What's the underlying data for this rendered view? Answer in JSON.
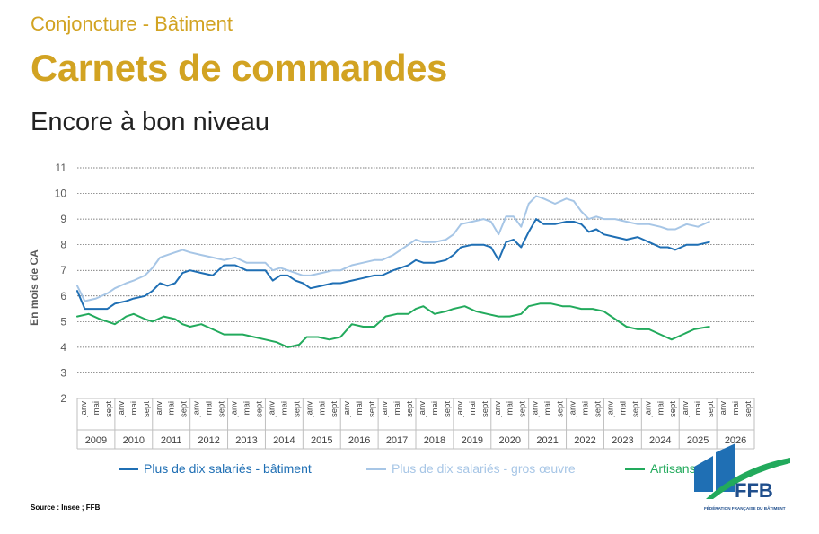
{
  "header": {
    "kicker": "Conjoncture - Bâtiment",
    "title": "Carnets de commandes",
    "subtitle": "Encore à bon niveau"
  },
  "source": "Source : Insee ; FFB",
  "logo": {
    "text": "FFB",
    "tagline": "FÉDÉRATION FRANÇAISE DU BÂTIMENT"
  },
  "chart_data": {
    "type": "line",
    "ylabel": "En mois de CA",
    "ylim": [
      2,
      11
    ],
    "yticks": [
      2,
      3,
      4,
      5,
      6,
      7,
      8,
      9,
      10,
      11
    ],
    "grid": "horizontal dotted",
    "legend_position": "bottom",
    "month_labels": [
      "janv",
      "mai",
      "sept"
    ],
    "years": [
      "2009",
      "2010",
      "2011",
      "2012",
      "2013",
      "2014",
      "2015",
      "2016",
      "2017",
      "2018",
      "2019",
      "2020",
      "2021",
      "2022",
      "2023",
      "2024",
      "2025",
      "2026"
    ],
    "series": [
      {
        "name": "Plus de dix salariés - bâtiment",
        "color": "#1f6fb4",
        "points": [
          [
            2009.0,
            6.2
          ],
          [
            2009.2,
            5.5
          ],
          [
            2009.5,
            5.5
          ],
          [
            2009.8,
            5.5
          ],
          [
            2010.0,
            5.7
          ],
          [
            2010.3,
            5.8
          ],
          [
            2010.5,
            5.9
          ],
          [
            2010.8,
            6.0
          ],
          [
            2011.0,
            6.2
          ],
          [
            2011.2,
            6.5
          ],
          [
            2011.4,
            6.4
          ],
          [
            2011.6,
            6.5
          ],
          [
            2011.8,
            6.9
          ],
          [
            2012.0,
            7.0
          ],
          [
            2012.3,
            6.9
          ],
          [
            2012.6,
            6.8
          ],
          [
            2012.9,
            7.2
          ],
          [
            2013.2,
            7.2
          ],
          [
            2013.5,
            7.0
          ],
          [
            2013.8,
            7.0
          ],
          [
            2014.0,
            7.0
          ],
          [
            2014.2,
            6.6
          ],
          [
            2014.4,
            6.8
          ],
          [
            2014.6,
            6.8
          ],
          [
            2014.8,
            6.6
          ],
          [
            2015.0,
            6.5
          ],
          [
            2015.2,
            6.3
          ],
          [
            2015.5,
            6.4
          ],
          [
            2015.8,
            6.5
          ],
          [
            2016.0,
            6.5
          ],
          [
            2016.3,
            6.6
          ],
          [
            2016.6,
            6.7
          ],
          [
            2016.9,
            6.8
          ],
          [
            2017.1,
            6.8
          ],
          [
            2017.4,
            7.0
          ],
          [
            2017.6,
            7.1
          ],
          [
            2017.8,
            7.2
          ],
          [
            2018.0,
            7.4
          ],
          [
            2018.2,
            7.3
          ],
          [
            2018.5,
            7.3
          ],
          [
            2018.8,
            7.4
          ],
          [
            2019.0,
            7.6
          ],
          [
            2019.2,
            7.9
          ],
          [
            2019.5,
            8.0
          ],
          [
            2019.8,
            8.0
          ],
          [
            2020.0,
            7.9
          ],
          [
            2020.2,
            7.4
          ],
          [
            2020.4,
            8.1
          ],
          [
            2020.6,
            8.2
          ],
          [
            2020.8,
            7.9
          ],
          [
            2021.0,
            8.5
          ],
          [
            2021.2,
            9.0
          ],
          [
            2021.4,
            8.8
          ],
          [
            2021.7,
            8.8
          ],
          [
            2022.0,
            8.9
          ],
          [
            2022.2,
            8.9
          ],
          [
            2022.4,
            8.8
          ],
          [
            2022.6,
            8.5
          ],
          [
            2022.8,
            8.6
          ],
          [
            2023.0,
            8.4
          ],
          [
            2023.3,
            8.3
          ],
          [
            2023.6,
            8.2
          ],
          [
            2023.9,
            8.3
          ],
          [
            2024.2,
            8.1
          ],
          [
            2024.5,
            7.9
          ],
          [
            2024.7,
            7.9
          ],
          [
            2024.9,
            7.8
          ],
          [
            2025.2,
            8.0
          ],
          [
            2025.5,
            8.0
          ],
          [
            2025.8,
            8.1
          ]
        ]
      },
      {
        "name": "Plus de dix salariés - gros œuvre",
        "color": "#a7c6e6",
        "points": [
          [
            2009.0,
            6.4
          ],
          [
            2009.2,
            5.8
          ],
          [
            2009.5,
            5.9
          ],
          [
            2009.8,
            6.1
          ],
          [
            2010.0,
            6.3
          ],
          [
            2010.3,
            6.5
          ],
          [
            2010.5,
            6.6
          ],
          [
            2010.8,
            6.8
          ],
          [
            2011.0,
            7.1
          ],
          [
            2011.2,
            7.5
          ],
          [
            2011.4,
            7.6
          ],
          [
            2011.6,
            7.7
          ],
          [
            2011.8,
            7.8
          ],
          [
            2012.0,
            7.7
          ],
          [
            2012.3,
            7.6
          ],
          [
            2012.6,
            7.5
          ],
          [
            2012.9,
            7.4
          ],
          [
            2013.2,
            7.5
          ],
          [
            2013.5,
            7.3
          ],
          [
            2013.8,
            7.3
          ],
          [
            2014.0,
            7.3
          ],
          [
            2014.2,
            7.0
          ],
          [
            2014.4,
            7.1
          ],
          [
            2014.6,
            7.0
          ],
          [
            2014.8,
            6.9
          ],
          [
            2015.0,
            6.8
          ],
          [
            2015.2,
            6.8
          ],
          [
            2015.5,
            6.9
          ],
          [
            2015.8,
            7.0
          ],
          [
            2016.0,
            7.0
          ],
          [
            2016.3,
            7.2
          ],
          [
            2016.6,
            7.3
          ],
          [
            2016.9,
            7.4
          ],
          [
            2017.1,
            7.4
          ],
          [
            2017.4,
            7.6
          ],
          [
            2017.6,
            7.8
          ],
          [
            2017.8,
            8.0
          ],
          [
            2018.0,
            8.2
          ],
          [
            2018.2,
            8.1
          ],
          [
            2018.5,
            8.1
          ],
          [
            2018.8,
            8.2
          ],
          [
            2019.0,
            8.4
          ],
          [
            2019.2,
            8.8
          ],
          [
            2019.5,
            8.9
          ],
          [
            2019.8,
            9.0
          ],
          [
            2020.0,
            8.9
          ],
          [
            2020.2,
            8.4
          ],
          [
            2020.4,
            9.1
          ],
          [
            2020.6,
            9.1
          ],
          [
            2020.8,
            8.7
          ],
          [
            2021.0,
            9.6
          ],
          [
            2021.2,
            9.9
          ],
          [
            2021.4,
            9.8
          ],
          [
            2021.7,
            9.6
          ],
          [
            2022.0,
            9.8
          ],
          [
            2022.2,
            9.7
          ],
          [
            2022.4,
            9.3
          ],
          [
            2022.6,
            9.0
          ],
          [
            2022.8,
            9.1
          ],
          [
            2023.0,
            9.0
          ],
          [
            2023.3,
            9.0
          ],
          [
            2023.6,
            8.9
          ],
          [
            2023.9,
            8.8
          ],
          [
            2024.2,
            8.8
          ],
          [
            2024.5,
            8.7
          ],
          [
            2024.7,
            8.6
          ],
          [
            2024.9,
            8.6
          ],
          [
            2025.2,
            8.8
          ],
          [
            2025.5,
            8.7
          ],
          [
            2025.8,
            8.9
          ]
        ]
      },
      {
        "name": "Artisans",
        "color": "#22aa5c",
        "points": [
          [
            2009.0,
            5.2
          ],
          [
            2009.3,
            5.3
          ],
          [
            2009.6,
            5.1
          ],
          [
            2009.8,
            5.0
          ],
          [
            2010.0,
            4.9
          ],
          [
            2010.3,
            5.2
          ],
          [
            2010.5,
            5.3
          ],
          [
            2010.8,
            5.1
          ],
          [
            2011.0,
            5.0
          ],
          [
            2011.3,
            5.2
          ],
          [
            2011.6,
            5.1
          ],
          [
            2011.8,
            4.9
          ],
          [
            2012.0,
            4.8
          ],
          [
            2012.3,
            4.9
          ],
          [
            2012.6,
            4.7
          ],
          [
            2012.9,
            4.5
          ],
          [
            2013.1,
            4.5
          ],
          [
            2013.4,
            4.5
          ],
          [
            2013.7,
            4.4
          ],
          [
            2014.0,
            4.3
          ],
          [
            2014.3,
            4.2
          ],
          [
            2014.6,
            4.0
          ],
          [
            2014.9,
            4.1
          ],
          [
            2015.1,
            4.4
          ],
          [
            2015.4,
            4.4
          ],
          [
            2015.7,
            4.3
          ],
          [
            2016.0,
            4.4
          ],
          [
            2016.3,
            4.9
          ],
          [
            2016.6,
            4.8
          ],
          [
            2016.9,
            4.8
          ],
          [
            2017.2,
            5.2
          ],
          [
            2017.5,
            5.3
          ],
          [
            2017.8,
            5.3
          ],
          [
            2018.0,
            5.5
          ],
          [
            2018.2,
            5.6
          ],
          [
            2018.5,
            5.3
          ],
          [
            2018.8,
            5.4
          ],
          [
            2019.0,
            5.5
          ],
          [
            2019.3,
            5.6
          ],
          [
            2019.6,
            5.4
          ],
          [
            2019.9,
            5.3
          ],
          [
            2020.2,
            5.2
          ],
          [
            2020.5,
            5.2
          ],
          [
            2020.8,
            5.3
          ],
          [
            2021.0,
            5.6
          ],
          [
            2021.3,
            5.7
          ],
          [
            2021.6,
            5.7
          ],
          [
            2021.9,
            5.6
          ],
          [
            2022.1,
            5.6
          ],
          [
            2022.4,
            5.5
          ],
          [
            2022.7,
            5.5
          ],
          [
            2023.0,
            5.4
          ],
          [
            2023.3,
            5.1
          ],
          [
            2023.6,
            4.8
          ],
          [
            2023.9,
            4.7
          ],
          [
            2024.2,
            4.7
          ],
          [
            2024.5,
            4.5
          ],
          [
            2024.8,
            4.3
          ],
          [
            2025.1,
            4.5
          ],
          [
            2025.4,
            4.7
          ],
          [
            2025.8,
            4.8
          ]
        ]
      }
    ]
  }
}
